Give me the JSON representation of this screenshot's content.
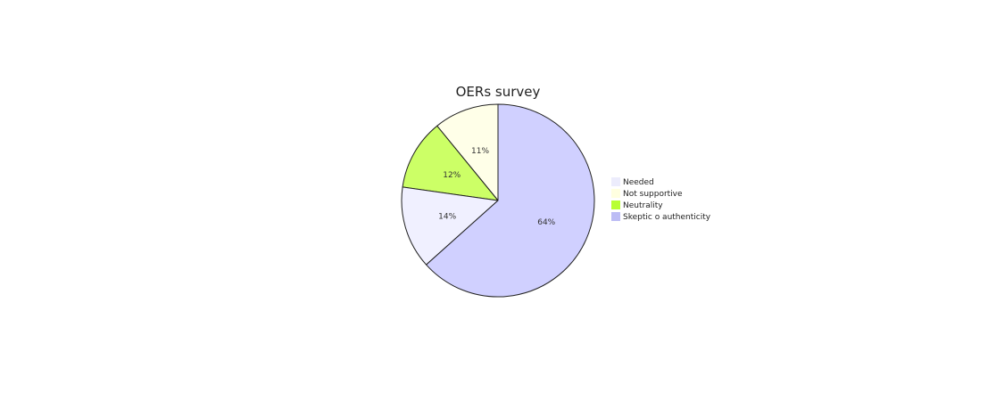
{
  "chart_data": {
    "type": "pie",
    "title": "OERs survey",
    "legend_position": "right",
    "slices": [
      {
        "label": "Needed",
        "value": 14,
        "display": "14%",
        "color": "#f0f0ff"
      },
      {
        "label": "Not supportive",
        "value": 11,
        "display": "11%",
        "color": "#ffffe8"
      },
      {
        "label": "Neutrality",
        "value": 12,
        "display": "12%",
        "color": "#ccff66"
      },
      {
        "label": "Skeptic o authenticity",
        "value": 64,
        "display": "64%",
        "color": "#d0d0ff"
      }
    ],
    "legend_colors": [
      "#ececfc",
      "#ffffe0",
      "#b8ff33",
      "#bcbcf5"
    ],
    "slice_stroke": "#222222"
  }
}
